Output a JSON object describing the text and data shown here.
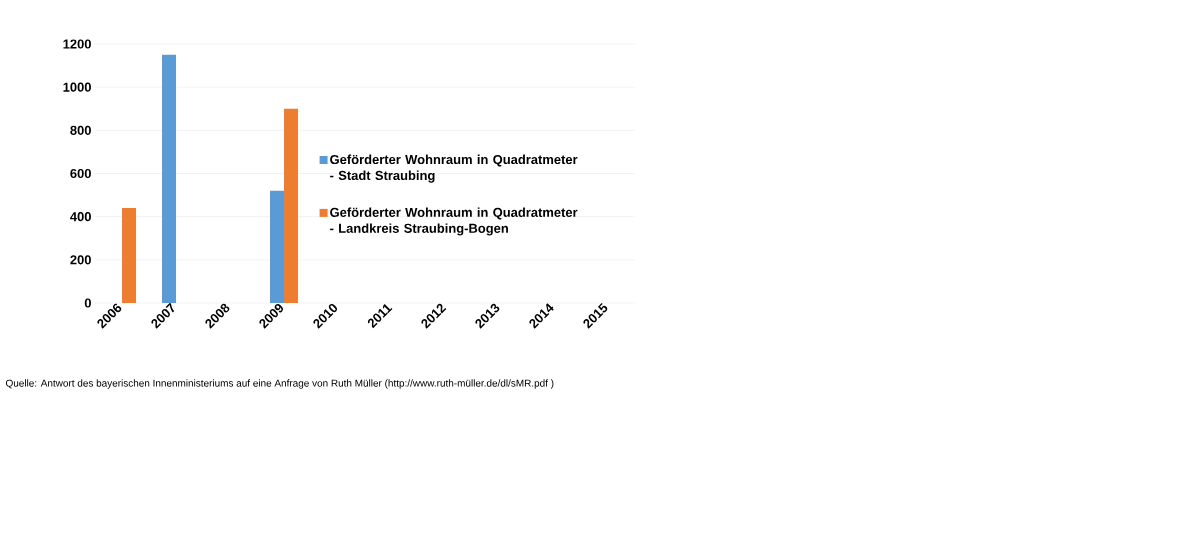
{
  "chart_data": {
    "type": "bar",
    "categories": [
      "2006",
      "2007",
      "2008",
      "2009",
      "2010",
      "2011",
      "2012",
      "2013",
      "2014",
      "2015"
    ],
    "series": [
      {
        "name": "Geförderter Wohnraum in Quadratmeter - Stadt Straubing",
        "color": "#5b9bd5",
        "values": [
          0,
          1150,
          0,
          520,
          0,
          0,
          0,
          0,
          0,
          0
        ]
      },
      {
        "name": "Geförderter Wohnraum in Quadratmeter - Landkreis Straubing-Bogen",
        "color": "#ed7d31",
        "values": [
          440,
          0,
          0,
          900,
          0,
          0,
          0,
          0,
          0,
          0
        ]
      }
    ],
    "ylim": [
      0,
      1200
    ],
    "yticks": [
      0,
      200,
      400,
      600,
      800,
      1000,
      1200
    ],
    "grid": "y",
    "legend": "right",
    "annotations": [
      "Quelle: Antwort des bayerischen Innenministeriums auf eine Anfrage von Ruth Müller (http://www.ruth-müller.de/dl/sMR.pdf )"
    ]
  }
}
